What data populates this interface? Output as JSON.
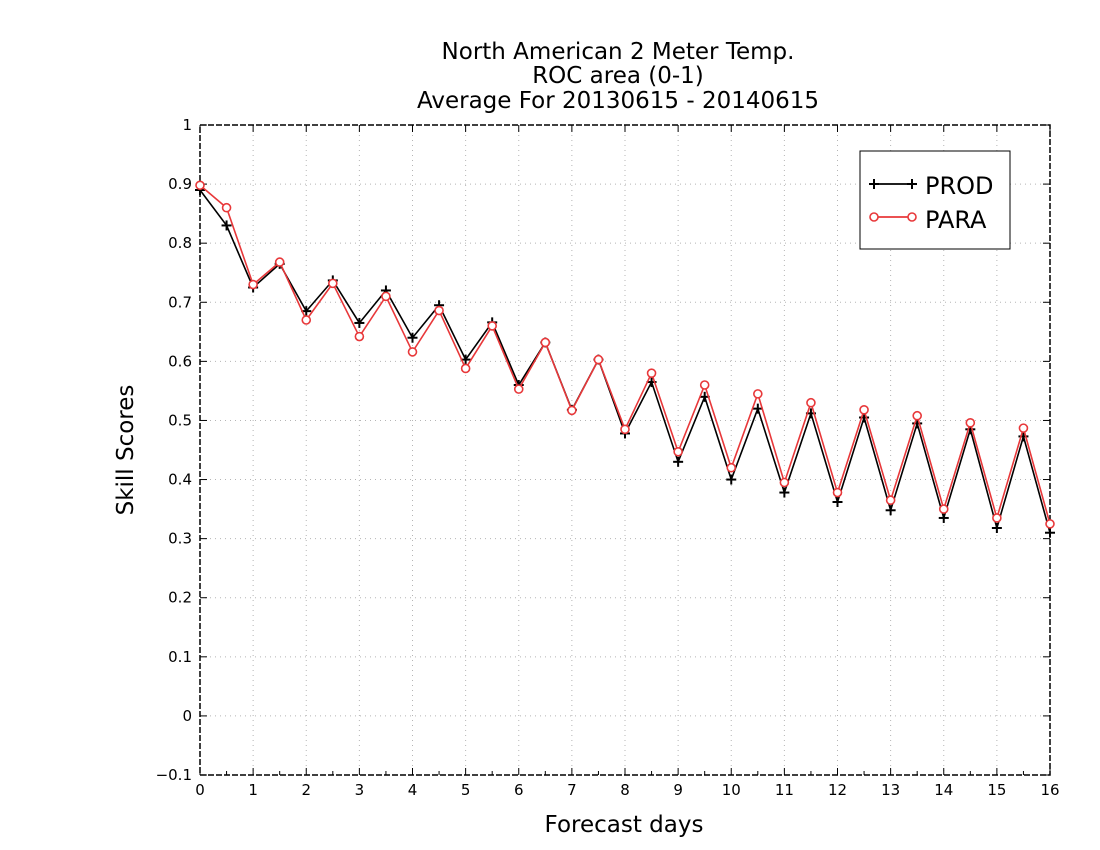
{
  "chart_data": {
    "type": "line",
    "title_lines": [
      "North American 2 Meter Temp.",
      "ROC area (0-1)",
      "Average For 20130615 - 20140615"
    ],
    "xlabel": "Forecast days",
    "ylabel": "Skill Scores",
    "xlim": [
      0,
      16
    ],
    "ylim": [
      -0.1,
      1
    ],
    "x_ticks": [
      0,
      1,
      2,
      3,
      4,
      5,
      6,
      7,
      8,
      9,
      10,
      11,
      12,
      13,
      14,
      15,
      16
    ],
    "y_ticks": [
      -0.1,
      0,
      0.1,
      0.2,
      0.3,
      0.4,
      0.5,
      0.6,
      0.7,
      0.8,
      0.9,
      1
    ],
    "x_tick_labels": [
      "0",
      "1",
      "2",
      "3",
      "4",
      "5",
      "6",
      "7",
      "8",
      "9",
      "10",
      "11",
      "12",
      "13",
      "14",
      "15",
      "16"
    ],
    "y_tick_labels": [
      "−0.1",
      "0",
      "0.1",
      "0.2",
      "0.3",
      "0.4",
      "0.5",
      "0.6",
      "0.7",
      "0.8",
      "0.9",
      "1"
    ],
    "grid": true,
    "legend_position": "top-right",
    "x": [
      0,
      0.5,
      1,
      1.5,
      2,
      2.5,
      3,
      3.5,
      4,
      4.5,
      5,
      5.5,
      6,
      6.5,
      7,
      7.5,
      8,
      8.5,
      9,
      9.5,
      10,
      10.5,
      11,
      11.5,
      12,
      12.5,
      13,
      13.5,
      14,
      14.5,
      15,
      15.5,
      16
    ],
    "series": [
      {
        "name": "PROD",
        "color": "#000000",
        "marker": "plus",
        "values": [
          0.89,
          0.83,
          0.725,
          0.765,
          0.685,
          0.737,
          0.665,
          0.72,
          0.64,
          0.695,
          0.603,
          0.666,
          0.56,
          0.632,
          0.518,
          0.603,
          0.478,
          0.565,
          0.43,
          0.54,
          0.4,
          0.52,
          0.378,
          0.512,
          0.362,
          0.505,
          0.348,
          0.495,
          0.335,
          0.485,
          0.318,
          0.473,
          0.31
        ]
      },
      {
        "name": "PARA",
        "color": "#e8383a",
        "marker": "circle",
        "values": [
          0.898,
          0.86,
          0.73,
          0.768,
          0.67,
          0.732,
          0.642,
          0.71,
          0.616,
          0.686,
          0.588,
          0.66,
          0.553,
          0.632,
          0.517,
          0.603,
          0.485,
          0.58,
          0.447,
          0.56,
          0.42,
          0.545,
          0.395,
          0.53,
          0.378,
          0.518,
          0.365,
          0.508,
          0.35,
          0.496,
          0.335,
          0.487,
          0.325
        ]
      }
    ]
  }
}
